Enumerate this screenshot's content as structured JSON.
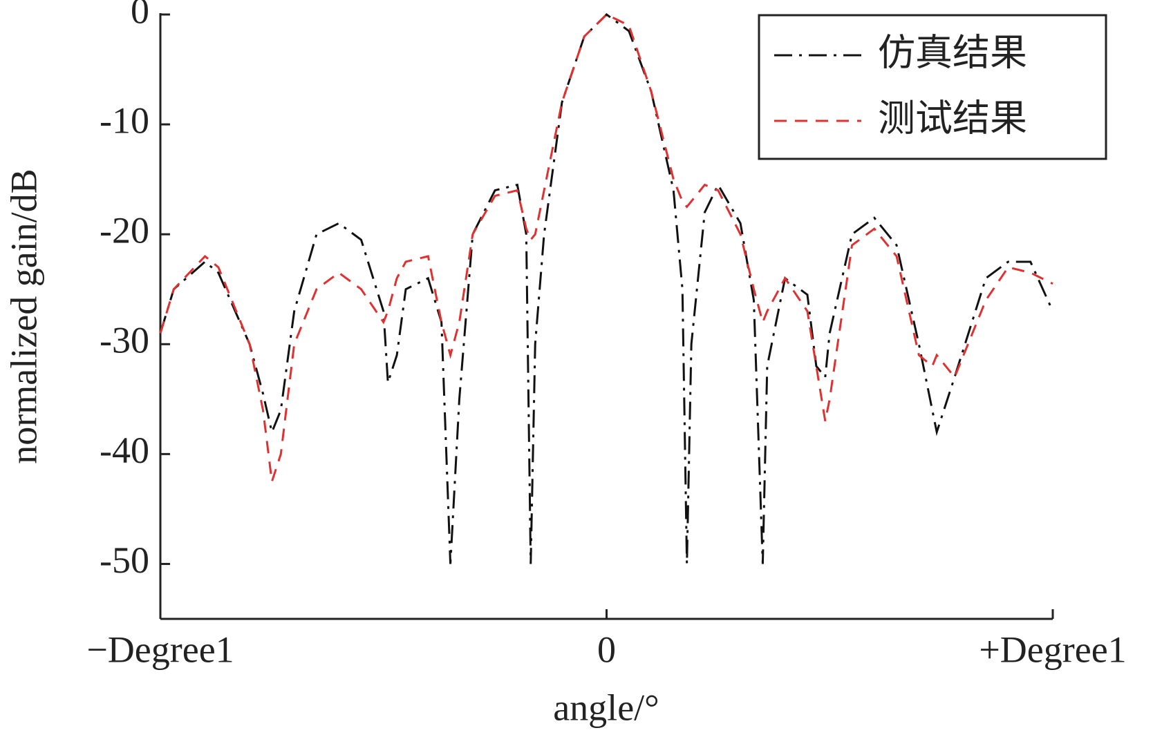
{
  "chart_data": {
    "type": "line",
    "x_label": "angle/°",
    "y_label": "normalized gain/dB",
    "xlim": [
      -1,
      1
    ],
    "xticks": [
      {
        "value": -1,
        "label": "−Degree1"
      },
      0,
      {
        "value": 1,
        "label": "+Degree1"
      }
    ],
    "ylim": [
      -55,
      0
    ],
    "yticks": [
      0,
      -10,
      -20,
      -30,
      -40,
      -50
    ],
    "grid": false,
    "legend": "upper right",
    "x": [
      -1,
      -0.97,
      -0.9,
      -0.87,
      -0.8,
      -0.77,
      -0.75,
      -0.73,
      -0.7,
      -0.65,
      -0.6,
      -0.55,
      -0.5,
      -0.49,
      -0.47,
      -0.45,
      -0.4,
      -0.37,
      -0.35,
      -0.33,
      -0.3,
      -0.25,
      -0.2,
      -0.18,
      -0.17,
      -0.16,
      -0.14,
      -0.1,
      -0.05,
      0,
      0.05,
      0.1,
      0.15,
      0.17,
      0.18,
      0.19,
      0.22,
      0.25,
      0.3,
      0.33,
      0.35,
      0.36,
      0.4,
      0.45,
      0.47,
      0.49,
      0.5,
      0.55,
      0.6,
      0.65,
      0.7,
      0.73,
      0.74,
      0.78,
      0.85,
      0.9,
      0.95,
      1
    ],
    "series": [
      {
        "name": "仿真结果",
        "color": "#111111",
        "dash": "dashdot",
        "values": [
          -29,
          -25,
          -22.5,
          -23.5,
          -30,
          -34.5,
          -38,
          -36,
          -27,
          -20,
          -19,
          -20.5,
          -27,
          -33.5,
          -31,
          -25,
          -24,
          -28,
          -50,
          -35,
          -20,
          -16,
          -15.5,
          -20,
          -50,
          -30,
          -20,
          -8,
          -2,
          0,
          -1.5,
          -7,
          -16,
          -25,
          -50,
          -30,
          -18,
          -15.5,
          -19,
          -26,
          -50,
          -32,
          -24,
          -25.5,
          -32,
          -33,
          -29,
          -20,
          -18.5,
          -21,
          -30,
          -36,
          -38,
          -33,
          -24,
          -22.5,
          -22.5,
          -27
        ]
      },
      {
        "name": "测试结果",
        "color": "#e03030",
        "dash": "dashed",
        "values": [
          -29,
          -25,
          -22,
          -23,
          -30,
          -36,
          -42.5,
          -40,
          -30,
          -25,
          -23.5,
          -25,
          -28,
          -27,
          -24,
          -22.5,
          -22,
          -28,
          -31,
          -28,
          -20,
          -16.5,
          -16,
          -19.5,
          -20.5,
          -20,
          -16,
          -8,
          -2,
          0,
          -1,
          -7,
          -15,
          -17,
          -17.5,
          -17,
          -15.5,
          -16,
          -20,
          -25,
          -28,
          -27,
          -24,
          -27,
          -32,
          -37,
          -35,
          -21,
          -19.5,
          -22,
          -31,
          -32,
          -31,
          -33,
          -26,
          -23,
          -23.5,
          -24.5
        ]
      }
    ]
  }
}
